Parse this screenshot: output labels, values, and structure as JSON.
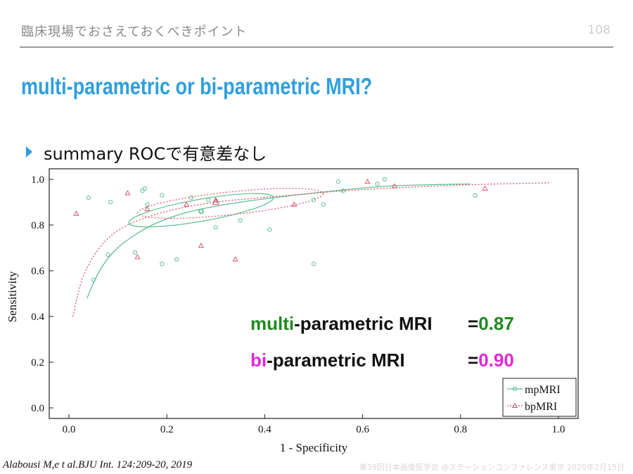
{
  "header": {
    "title": "臨床現場でおさえておくべきポイント",
    "page_number": "108"
  },
  "slide_title": "multi-parametric or bi-parametric MRI?",
  "bullet": "summary ROCで有意差なし",
  "overlay": {
    "mp_prefix": "multi",
    "mp_rest": "-parametric MRI",
    "mp_value": "=0.87",
    "bp_prefix": "bi",
    "bp_rest": "-parametric MRI",
    "bp_value": "=0.90"
  },
  "colors": {
    "accent": "#2f9fdc",
    "mp_series": "#5fbf95",
    "bp_series": "#d9536b",
    "mp_highlight": "#1e8a1e",
    "bp_highlight": "#e028d8"
  },
  "citation": "Alabousi M,e t al.BJU Int. 124:209-20, 2019",
  "footer": "第39回日本画像医学会 @ステーションコンファレンス東京 2020年2月15日",
  "chart_data": {
    "type": "scatter",
    "xlabel": "1 - Specificity",
    "ylabel": "Sensitivity",
    "xlim": [
      0,
      1.0
    ],
    "ylim": [
      0,
      1.0
    ],
    "xticks": [
      "0.0",
      "0.2",
      "0.4",
      "0.6",
      "0.8",
      "1.0"
    ],
    "yticks": [
      "0.0",
      "0.2",
      "0.4",
      "0.6",
      "0.8",
      "1.0"
    ],
    "grid": false,
    "legend_position": "bottom-right",
    "series": [
      {
        "name": "mpMRI",
        "marker": "circle",
        "line_style": "solid",
        "points": [
          [
            0.04,
            0.92
          ],
          [
            0.05,
            0.56
          ],
          [
            0.08,
            0.67
          ],
          [
            0.085,
            0.9
          ],
          [
            0.135,
            0.68
          ],
          [
            0.15,
            0.95
          ],
          [
            0.155,
            0.96
          ],
          [
            0.16,
            0.89
          ],
          [
            0.19,
            0.93
          ],
          [
            0.19,
            0.63
          ],
          [
            0.22,
            0.65
          ],
          [
            0.25,
            0.92
          ],
          [
            0.27,
            0.86
          ],
          [
            0.285,
            0.91
          ],
          [
            0.3,
            0.79
          ],
          [
            0.35,
            0.82
          ],
          [
            0.41,
            0.78
          ],
          [
            0.5,
            0.63
          ],
          [
            0.5,
            0.91
          ],
          [
            0.55,
            0.99
          ],
          [
            0.56,
            0.95
          ],
          [
            0.63,
            0.98
          ],
          [
            0.645,
            1.0
          ],
          [
            0.83,
            0.93
          ],
          [
            0.52,
            0.89
          ]
        ],
        "summary_curve": [
          [
            0.037,
            0.48
          ],
          [
            0.06,
            0.59
          ],
          [
            0.09,
            0.68
          ],
          [
            0.13,
            0.75
          ],
          [
            0.18,
            0.81
          ],
          [
            0.25,
            0.86
          ],
          [
            0.35,
            0.9
          ],
          [
            0.5,
            0.94
          ],
          [
            0.65,
            0.97
          ],
          [
            0.82,
            0.98
          ]
        ],
        "summary_point": [
          0.27,
          0.86
        ],
        "confidence_ellipse": {
          "cx": 0.27,
          "cy": 0.865,
          "rx": 0.15,
          "ry": 0.048,
          "angle_deg": 10
        }
      },
      {
        "name": "bpMRI",
        "marker": "triangle",
        "line_style": "dotted",
        "points": [
          [
            0.015,
            0.85
          ],
          [
            0.12,
            0.94
          ],
          [
            0.14,
            0.66
          ],
          [
            0.16,
            0.87
          ],
          [
            0.24,
            0.89
          ],
          [
            0.27,
            0.71
          ],
          [
            0.3,
            0.91
          ],
          [
            0.34,
            0.65
          ],
          [
            0.46,
            0.89
          ],
          [
            0.61,
            0.99
          ],
          [
            0.665,
            0.97
          ],
          [
            0.85,
            0.96
          ]
        ],
        "summary_curve": [
          [
            0.008,
            0.4
          ],
          [
            0.03,
            0.58
          ],
          [
            0.07,
            0.72
          ],
          [
            0.12,
            0.8
          ],
          [
            0.2,
            0.86
          ],
          [
            0.3,
            0.9
          ],
          [
            0.45,
            0.93
          ],
          [
            0.6,
            0.955
          ],
          [
            0.8,
            0.975
          ],
          [
            0.985,
            0.985
          ]
        ],
        "summary_point": [
          0.3,
          0.9
        ],
        "confidence_ellipse": {
          "cx": 0.33,
          "cy": 0.895,
          "rx": 0.19,
          "ry": 0.05,
          "angle_deg": 6
        }
      }
    ]
  }
}
